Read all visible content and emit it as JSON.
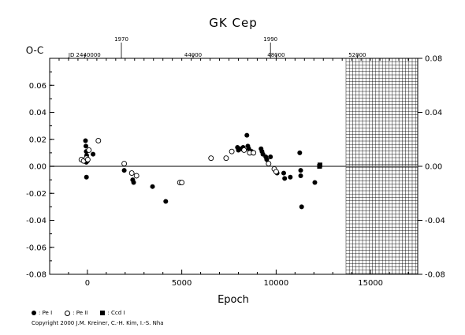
{
  "chart_data": {
    "type": "scatter",
    "title": "GK Cep",
    "ylabel": "O-C",
    "xlabel": "Epoch",
    "xlim": [
      -2000,
      17500
    ],
    "ylim": [
      -0.08,
      0.08
    ],
    "x_ticks": [
      "0",
      "5000",
      "10000",
      "15000"
    ],
    "x_tick_values": [
      0,
      5000,
      10000,
      15000
    ],
    "y_ticks_left": [
      "0.06",
      "0.04",
      "0.02",
      "0.00",
      "-0.02",
      "-0.04",
      "-0.06",
      "-0.08"
    ],
    "y_tick_values_left": [
      0.06,
      0.04,
      0.02,
      0.0,
      -0.02,
      -0.04,
      -0.06,
      -0.08
    ],
    "y_ticks_right": [
      "0.08",
      "0.04",
      "0.00",
      "-0.04",
      "-0.08"
    ],
    "y_tick_values_right": [
      0.08,
      0.04,
      0.0,
      -0.04,
      -0.08
    ],
    "top_year_ticks": [
      {
        "label": "1970",
        "epoch": 1800
      },
      {
        "label": "1990",
        "epoch": 9700
      }
    ],
    "top_jd_ticks": [
      {
        "label": "JD 2440000",
        "epoch": -150
      },
      {
        "label": "44000",
        "epoch": 5600
      },
      {
        "label": "48000",
        "epoch": 10000
      },
      {
        "label": "52000",
        "epoch": 14300
      }
    ],
    "future_region_start_epoch": 13700,
    "zero_line": true,
    "series": [
      {
        "name": "Pe I",
        "marker": "filled-circle",
        "points": [
          [
            -100,
            0.019
          ],
          [
            -80,
            0.015
          ],
          [
            -60,
            0.011
          ],
          [
            -40,
            0.008
          ],
          [
            -20,
            0.006
          ],
          [
            0,
            0.004
          ],
          [
            -120,
            0.004
          ],
          [
            -60,
            0.003
          ],
          [
            -50,
            -0.008
          ],
          [
            300,
            0.009
          ],
          [
            1950,
            -0.003
          ],
          [
            2400,
            -0.01
          ],
          [
            2450,
            -0.012
          ],
          [
            3450,
            -0.015
          ],
          [
            4150,
            -0.026
          ],
          [
            7950,
            0.014
          ],
          [
            8000,
            0.012
          ],
          [
            8050,
            0.013
          ],
          [
            8150,
            0.013
          ],
          [
            8250,
            0.014
          ],
          [
            8450,
            0.023
          ],
          [
            8500,
            0.015
          ],
          [
            8550,
            0.013
          ],
          [
            8700,
            0.011
          ],
          [
            9200,
            0.013
          ],
          [
            9250,
            0.011
          ],
          [
            9300,
            0.009
          ],
          [
            9450,
            0.007
          ],
          [
            9500,
            0.005
          ],
          [
            9700,
            0.007
          ],
          [
            10050,
            -0.005
          ],
          [
            10400,
            -0.005
          ],
          [
            10450,
            -0.009
          ],
          [
            10750,
            -0.008
          ],
          [
            11250,
            0.01
          ],
          [
            11300,
            -0.003
          ],
          [
            11300,
            -0.007
          ],
          [
            11350,
            -0.03
          ],
          [
            12050,
            -0.012
          ]
        ]
      },
      {
        "name": "Pe II",
        "marker": "open-circle",
        "points": [
          [
            -320,
            0.005
          ],
          [
            -200,
            0.004
          ],
          [
            -50,
            0.006
          ],
          [
            20,
            0.005
          ],
          [
            80,
            0.012
          ],
          [
            580,
            0.019
          ],
          [
            1950,
            0.002
          ],
          [
            2350,
            -0.005
          ],
          [
            2600,
            -0.007
          ],
          [
            4900,
            -0.012
          ],
          [
            5000,
            -0.012
          ],
          [
            6550,
            0.006
          ],
          [
            7350,
            0.006
          ],
          [
            7650,
            0.011
          ],
          [
            8300,
            0.012
          ],
          [
            8600,
            0.01
          ],
          [
            8800,
            0.01
          ],
          [
            9600,
            0.002
          ],
          [
            9900,
            -0.002
          ],
          [
            10000,
            -0.004
          ]
        ]
      },
      {
        "name": "Ccd I",
        "marker": "filled-square",
        "points": [
          [
            12300,
            0.0
          ],
          [
            12320,
            0.001
          ]
        ]
      }
    ]
  },
  "legend": {
    "items": [
      {
        "symbol": "filled-circle",
        "label": ": Pe I"
      },
      {
        "symbol": "open-circle",
        "label": ": Pe II"
      },
      {
        "symbol": "filled-square",
        "label": ": Ccd I"
      }
    ]
  },
  "copyright": "Copyright 2000 J.M. Kreiner, C.-H. Kim, I.-S. Nha"
}
